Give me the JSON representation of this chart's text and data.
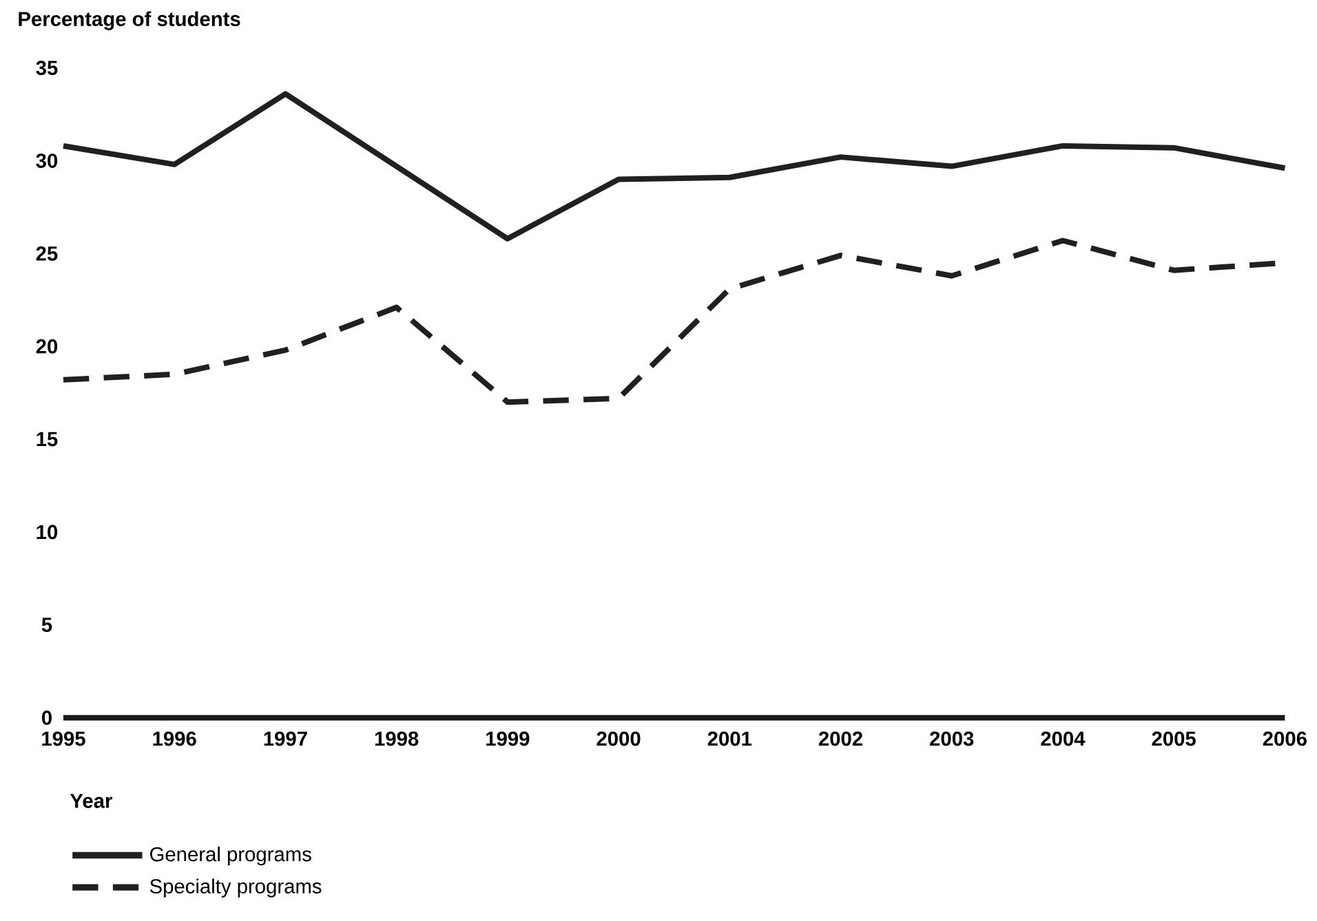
{
  "chart_data": {
    "type": "line",
    "ylabel": "Percentage of students",
    "xlabel": "Year",
    "categories": [
      "1995",
      "1996",
      "1997",
      "1998",
      "1999",
      "2000",
      "2001",
      "2002",
      "2003",
      "2004",
      "2005",
      "2006"
    ],
    "ylim": [
      0,
      35
    ],
    "yticks": [
      0,
      5,
      10,
      15,
      20,
      25,
      30,
      35
    ],
    "legend": "bottom left",
    "marker": "none",
    "series": [
      {
        "name": "General programs",
        "color": "#231f20",
        "line_style": "solid",
        "values": [
          30.8,
          29.8,
          33.6,
          29.7,
          25.8,
          29.0,
          29.1,
          30.2,
          29.7,
          30.8,
          30.7,
          29.6
        ]
      },
      {
        "name": "Specialty programs",
        "color": "#231f20",
        "line_style": "dashed",
        "values": [
          18.2,
          18.5,
          19.8,
          22.1,
          17.0,
          17.2,
          23.1,
          24.9,
          23.8,
          25.7,
          24.1,
          24.5
        ]
      }
    ]
  }
}
